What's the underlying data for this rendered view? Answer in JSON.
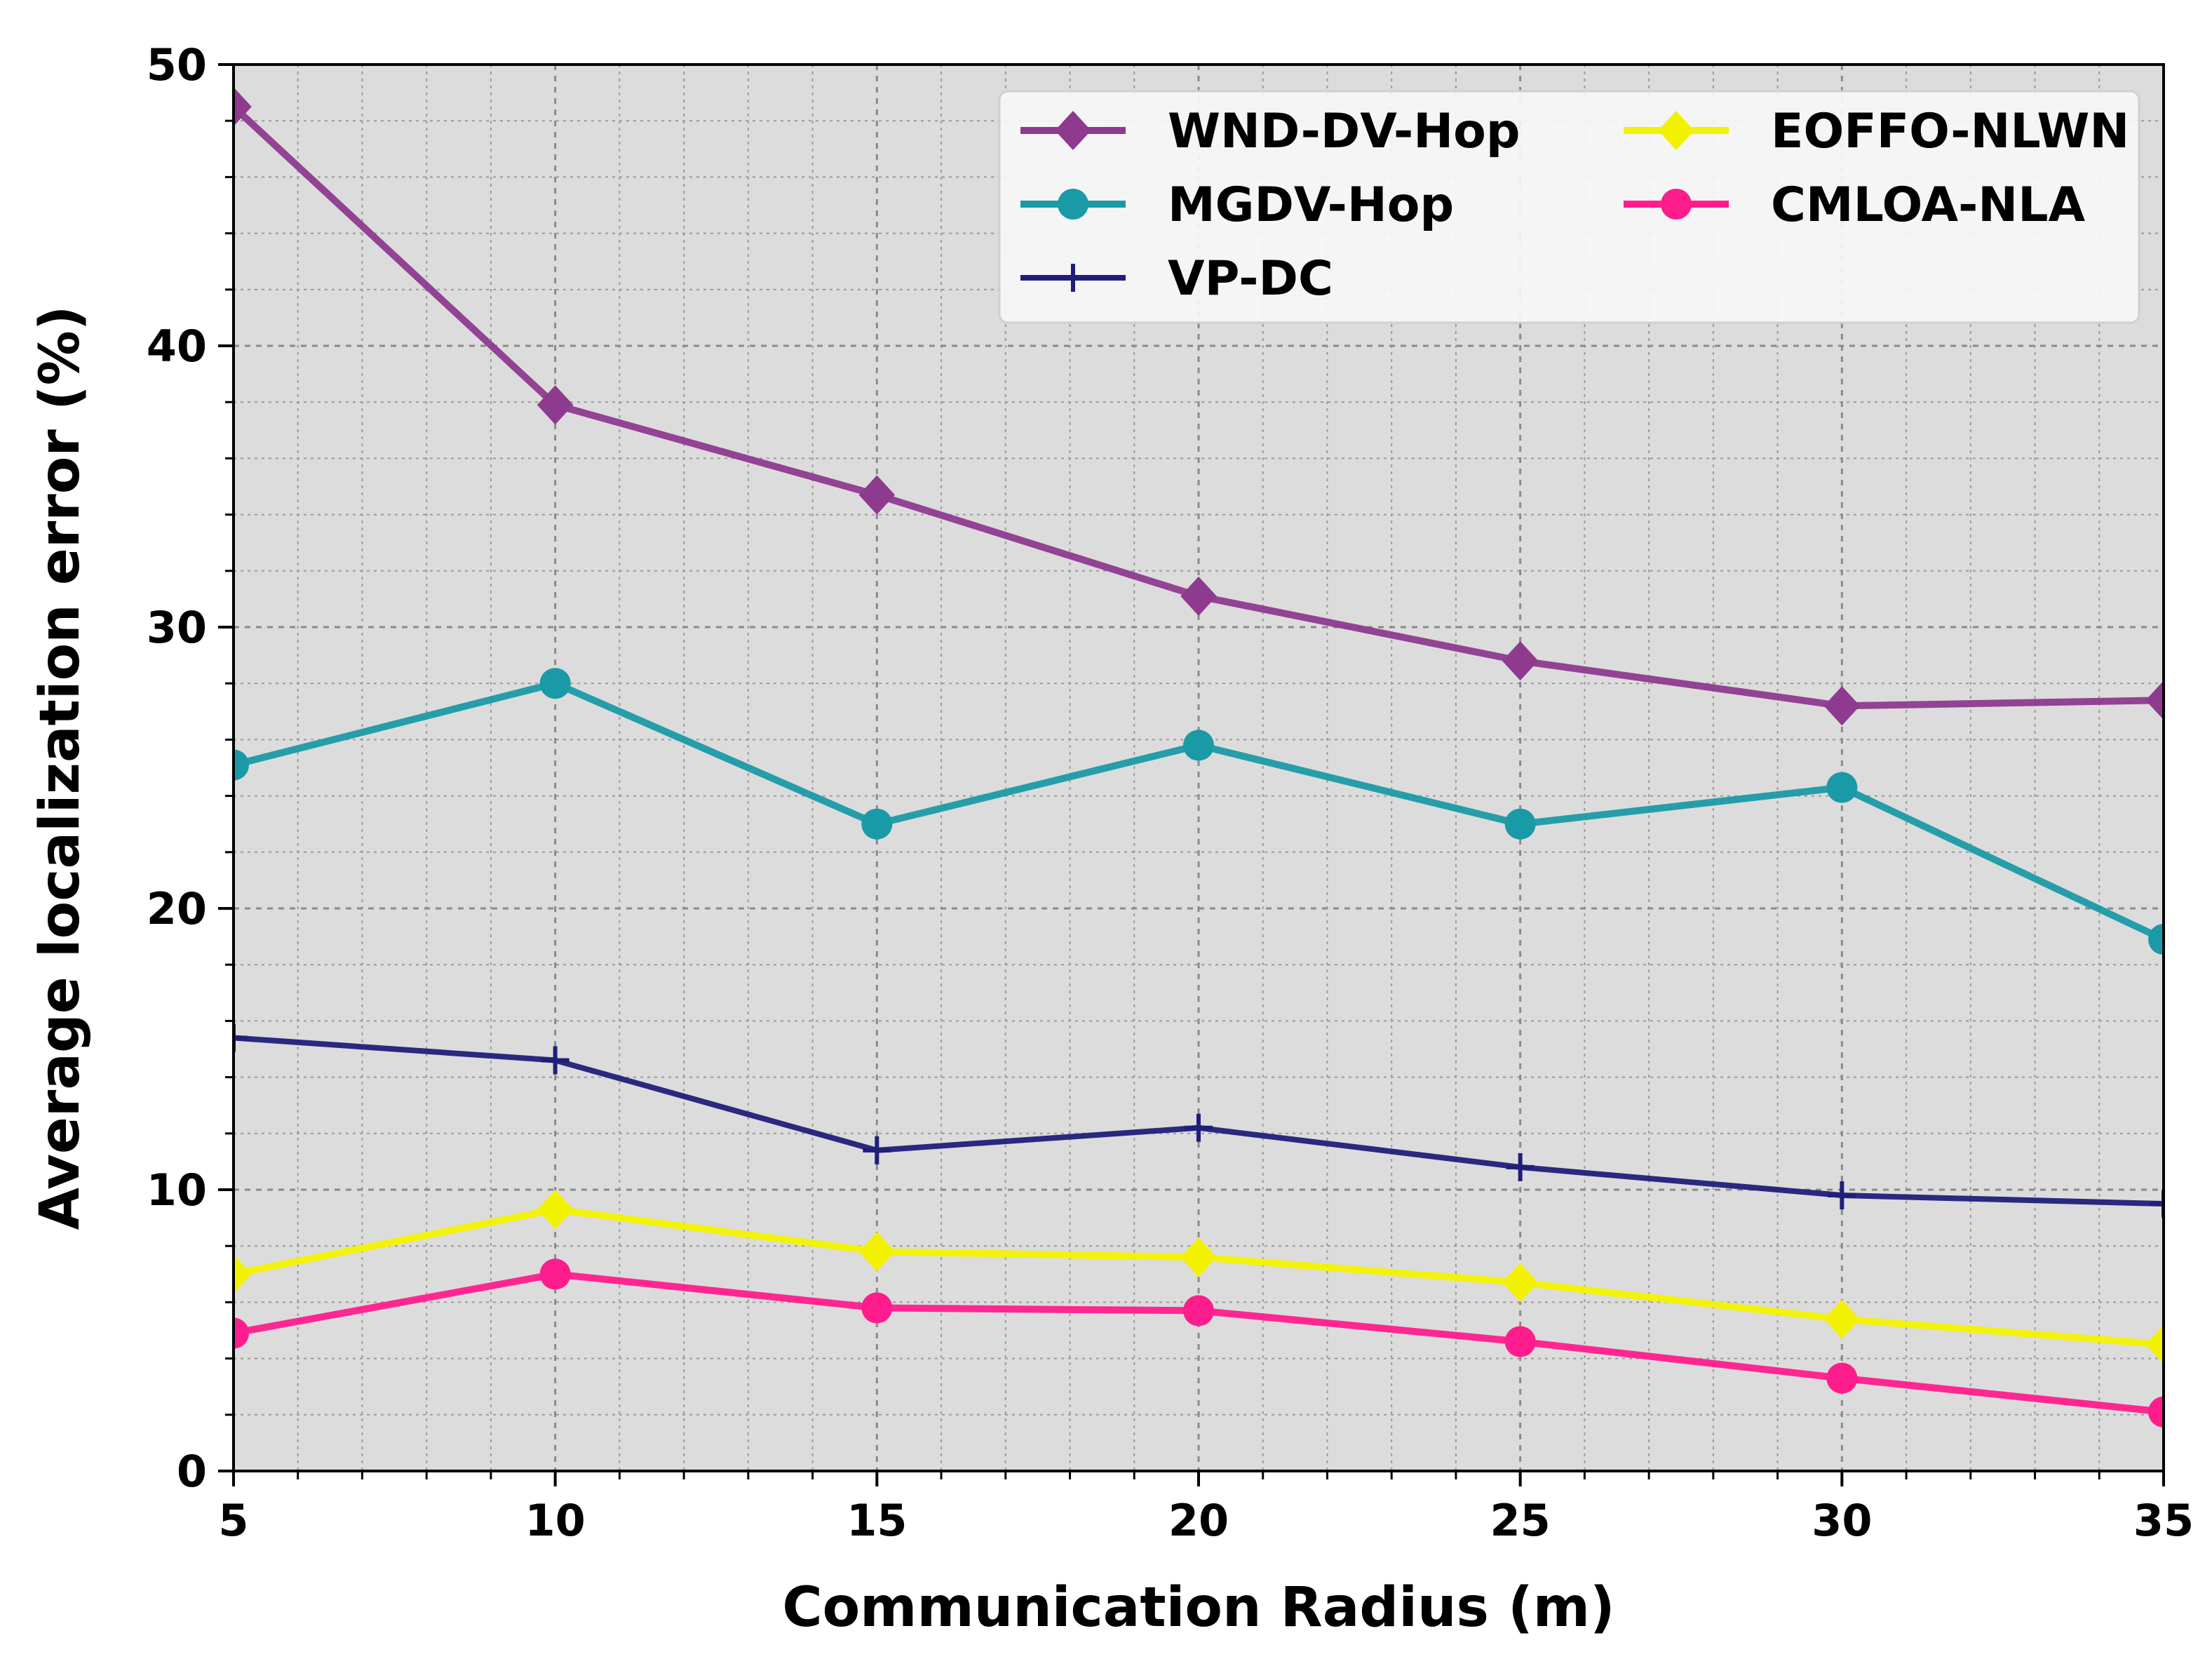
{
  "chart_data": {
    "type": "line",
    "title": "",
    "xlabel": "Communication Radius (m)",
    "ylabel": "Average localization error (%)",
    "xlim": [
      5,
      35
    ],
    "ylim": [
      0,
      50
    ],
    "xticks": [
      5,
      10,
      15,
      20,
      25,
      30,
      35
    ],
    "yticks": [
      0,
      10,
      20,
      30,
      40,
      50
    ],
    "grid": true,
    "minor_grid": true,
    "background": "#dcdcdc",
    "legend_position": "top-right",
    "legend_columns": 2,
    "x": [
      5,
      10,
      15,
      20,
      25,
      30,
      35
    ],
    "series": [
      {
        "name": "WND-DV-Hop",
        "color": "#8e3a8e",
        "marker": "diamond",
        "values": [
          48.5,
          37.9,
          34.7,
          31.1,
          28.8,
          27.2,
          27.4
        ]
      },
      {
        "name": "MGDV-Hop",
        "color": "#1a9aa6",
        "marker": "circle",
        "values": [
          25.1,
          28.0,
          23.0,
          25.8,
          23.0,
          24.3,
          18.9
        ]
      },
      {
        "name": "VP-DC",
        "color": "#1f1f7a",
        "marker": "plus",
        "values": [
          15.4,
          14.6,
          11.4,
          12.2,
          10.8,
          9.8,
          9.5
        ]
      },
      {
        "name": "EOFFO-NLWN",
        "color": "#f2f200",
        "marker": "diamond",
        "values": [
          7.0,
          9.3,
          7.8,
          7.6,
          6.7,
          5.4,
          4.5
        ]
      },
      {
        "name": "CMLOA-NLA",
        "color": "#ff1c8d",
        "marker": "circle",
        "values": [
          4.9,
          7.0,
          5.8,
          5.7,
          4.6,
          3.3,
          2.1
        ]
      }
    ]
  }
}
